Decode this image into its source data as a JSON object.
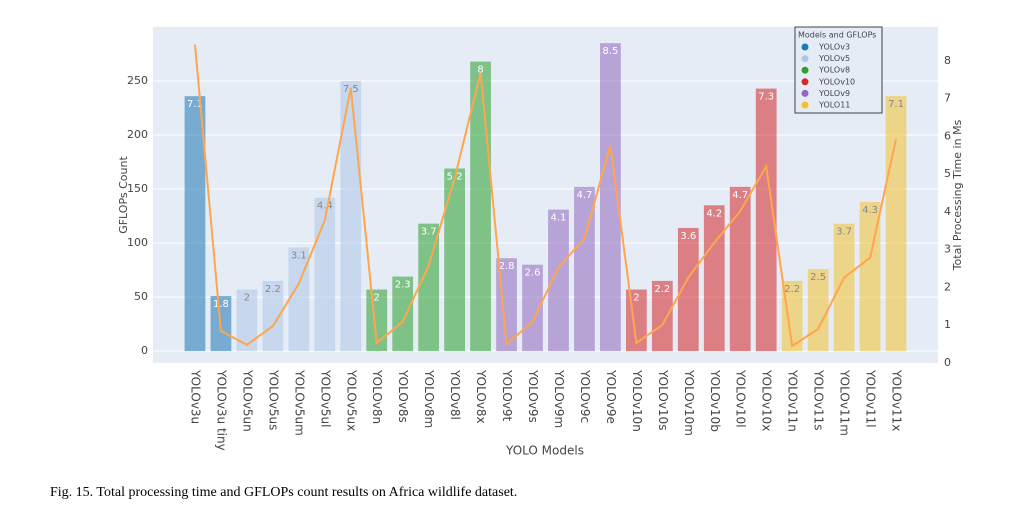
{
  "chart_data": {
    "type": "bar_line",
    "xlabel": "YOLO Models",
    "ylabel": "GFLOPs Count",
    "y2label": "Total Processing Time in Ms",
    "caption": "Fig. 15.  Total processing time and GFLOPs count results on Africa wildlife dataset.",
    "categories": [
      "YOLOv3u",
      "YOLOv3u tiny",
      "YOLOv5un",
      "YOLOv5us",
      "YOLOv5um",
      "YOLOv5ul",
      "YOLOv5ux",
      "YOLOv8n",
      "YOLOv8s",
      "YOLOv8m",
      "YOLOv8l",
      "YOLOv8x",
      "YOLOv9t",
      "YOLOv9s",
      "YOLOv9m",
      "YOLOv9c",
      "YOLOv9e",
      "YOLOv10n",
      "YOLOv10s",
      "YOLOv10m",
      "YOLOv10b",
      "YOLOv10l",
      "YOLOv10x",
      "YOLOv11n",
      "YOLOv11s",
      "YOLOv11m",
      "YOLOv11l",
      "YOLOv11x"
    ],
    "values": [
      236,
      51,
      57,
      65,
      96,
      142,
      250,
      57,
      69,
      118,
      169,
      268,
      86,
      80,
      131,
      152,
      285,
      57,
      65,
      114,
      135,
      152,
      243,
      65,
      76,
      118,
      138,
      236
    ],
    "bar_texts": [
      "7.1",
      "1.8",
      "2",
      "2.2",
      "3.1",
      "4.4",
      "7.5",
      "2",
      "2.3",
      "3.7",
      "5.2",
      "8",
      "2.8",
      "2.6",
      "4.1",
      "4.7",
      "8.5",
      "2",
      "2.2",
      "3.6",
      "4.2",
      "4.7",
      "7.3",
      "2.2",
      "2.5",
      "3.7",
      "4.3",
      "7.1"
    ],
    "bar_colors": [
      "#1f77b4",
      "#1f77b4",
      "#aec7e8",
      "#aec7e8",
      "#aec7e8",
      "#aec7e8",
      "#aec7e8",
      "#2ca02c",
      "#2ca02c",
      "#2ca02c",
      "#2ca02c",
      "#2ca02c",
      "#9467bd",
      "#9467bd",
      "#9467bd",
      "#9467bd",
      "#9467bd",
      "#d62728",
      "#d62728",
      "#d62728",
      "#d62728",
      "#d62728",
      "#d62728",
      "#f2c12e",
      "#f2c12e",
      "#f2c12e",
      "#f2c12e",
      "#f2c12e"
    ],
    "line": {
      "color": "#ffa64d",
      "axis": "y2",
      "values": [
        8.43,
        0.85,
        0.48,
        0.98,
        2.1,
        3.78,
        7.29,
        0.53,
        1.09,
        2.58,
        4.89,
        7.69,
        0.5,
        1.09,
        2.53,
        3.3,
        5.77,
        0.53,
        1.01,
        2.26,
        3.19,
        4.02,
        5.21,
        0.45,
        0.9,
        2.26,
        2.79,
        5.93
      ]
    },
    "legend": {
      "title": "Models and GFLOPs",
      "position": "top-right",
      "items": [
        {
          "name": "YOLOv3",
          "color": "#1f77b4"
        },
        {
          "name": "YOLOv5",
          "color": "#aec7e8"
        },
        {
          "name": "YOLOv8",
          "color": "#2ca02c"
        },
        {
          "name": "YOLOv10",
          "color": "#d62728"
        },
        {
          "name": "YOLOv9",
          "color": "#9467bd"
        },
        {
          "name": "YOLO11",
          "color": "#f2c12e"
        }
      ]
    },
    "ylim": [
      -11,
      300
    ],
    "yticks": [
      0,
      50,
      100,
      150,
      200,
      250
    ],
    "y2lim": [
      0,
      8.9
    ],
    "y2ticks": [
      0,
      1,
      2,
      3,
      4,
      5,
      6,
      7,
      8
    ],
    "grid": true
  }
}
